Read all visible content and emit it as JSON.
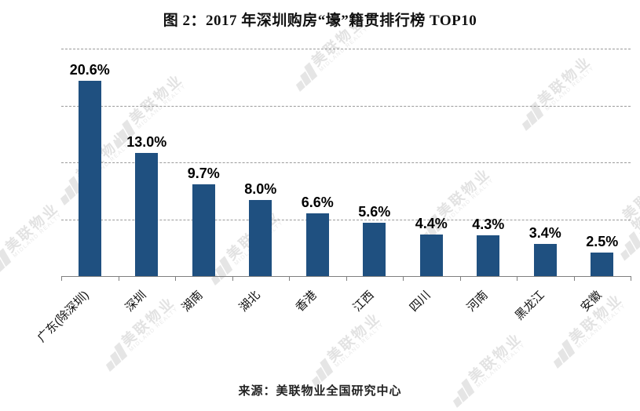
{
  "title": "图 2：2017 年深圳购房“壕”籍贯排行榜 TOP10",
  "source": "来源：美联物业全国研究中心",
  "watermark": {
    "icon": "midland-logo-icon",
    "text": "美联物业",
    "subtext": "MIDLAND REALTY"
  },
  "chart_data": {
    "type": "bar",
    "title": "图 2：2017 年深圳购房“壕”籍贯排行榜 TOP10",
    "categories": [
      "广东(除深圳)",
      "深圳",
      "湖南",
      "湖北",
      "香港",
      "江西",
      "四川",
      "河南",
      "黑龙江",
      "安徽"
    ],
    "values": [
      20.6,
      13.0,
      9.7,
      8.0,
      6.6,
      5.6,
      4.4,
      4.3,
      3.4,
      2.5
    ],
    "value_labels": [
      "20.6%",
      "13.0%",
      "9.7%",
      "8.0%",
      "6.6%",
      "5.6%",
      "4.4%",
      "4.3%",
      "3.4%",
      "2.5%"
    ],
    "xlabel": "",
    "ylabel": "",
    "ylim": [
      0,
      25
    ],
    "gridlines": [
      6,
      12,
      18,
      24
    ],
    "grid": "horizontal-dashed",
    "legend": "none",
    "bar_color": "#1F5080",
    "source": "来源：美联物业全国研究中心"
  }
}
